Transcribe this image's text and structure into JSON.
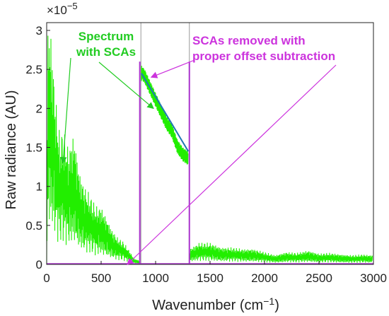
{
  "chart_data": {
    "type": "line",
    "xlabel": "Wavenumber (cm",
    "xlabel_sup": "−1",
    "xlabel_close": ")",
    "ylabel": "Raw radiance (AU)",
    "exponent_label": "×10",
    "exponent_sup": "−5",
    "xlim": [
      0,
      3000
    ],
    "ylim": [
      0,
      3.1
    ],
    "x_ticks": [
      0,
      500,
      1000,
      1500,
      2000,
      2500,
      3000
    ],
    "y_ticks": [
      0,
      0.5,
      1,
      1.5,
      2,
      2.5,
      3
    ],
    "x_tick_labels": [
      "0",
      "500",
      "1000",
      "1500",
      "2000",
      "2500",
      "3000"
    ],
    "y_tick_labels": [
      "0",
      "0.5",
      "1",
      "1.5",
      "2",
      "2.5",
      "3"
    ],
    "grid": false,
    "series": [
      {
        "color": "#22ee00",
        "segments": [
          {
            "x": [
              0,
              10,
              20,
              40,
              60,
              80,
              100,
              120,
              150,
              200,
              250,
              300,
              350,
              400,
              450,
              500,
              550,
              600,
              650,
              700,
              750,
              800,
              850
            ],
            "y": [
              0.1,
              3.1,
              3.1,
              3.0,
              2.6,
              2.2,
              1.9,
              1.7,
              1.75,
              1.5,
              1.7,
              1.2,
              1.0,
              0.9,
              0.75,
              0.75,
              0.6,
              0.45,
              0.35,
              0.3,
              0.2,
              0.08,
              0.05
            ]
          },
          {
            "x": [
              870,
              900,
              950,
              1000,
              1050,
              1100,
              1150,
              1200,
              1250,
              1300
            ],
            "y": [
              2.55,
              2.5,
              2.35,
              2.2,
              2.05,
              1.9,
              1.8,
              1.6,
              1.5,
              1.45
            ]
          },
          {
            "x": [
              1310,
              1400,
              1500,
              1600,
              1700,
              1800,
              1900,
              2000,
              2100,
              2200,
              2300,
              2400,
              2500,
              2600,
              2700,
              2800,
              2900,
              2990
            ],
            "y": [
              0.2,
              0.28,
              0.28,
              0.22,
              0.22,
              0.2,
              0.2,
              0.16,
              0.12,
              0.16,
              0.15,
              0.18,
              0.14,
              0.15,
              0.13,
              0.12,
              0.13,
              0.12
            ]
          }
        ]
      },
      {
        "color": "#1f77b4",
        "segments": [
          {
            "x": [
              870,
              1000,
              1150,
              1300
            ],
            "y": [
              2.45,
              2.15,
              1.8,
              1.45
            ]
          }
        ]
      }
    ],
    "vertical_lines": [
      {
        "x": 855,
        "color": "#aa33cc"
      },
      {
        "x": 1310,
        "color": "#aa33cc"
      }
    ],
    "gray_lines": [
      865,
      1310
    ],
    "annotations": {
      "green": {
        "lines": [
          "Spectrum",
          "with SCAs"
        ],
        "color": "#22cc22"
      },
      "purple": {
        "lines": [
          "SCAs removed with",
          "proper offset  subtraction"
        ],
        "color": "#cc33dd"
      }
    },
    "arrow_targets": {
      "green": [
        {
          "x": 150,
          "y": 1.3
        },
        {
          "x": 980,
          "y": 2.0
        }
      ],
      "purple": [
        {
          "x": 960,
          "y": 2.4
        },
        {
          "x": 740,
          "y": 0.0
        }
      ]
    }
  }
}
